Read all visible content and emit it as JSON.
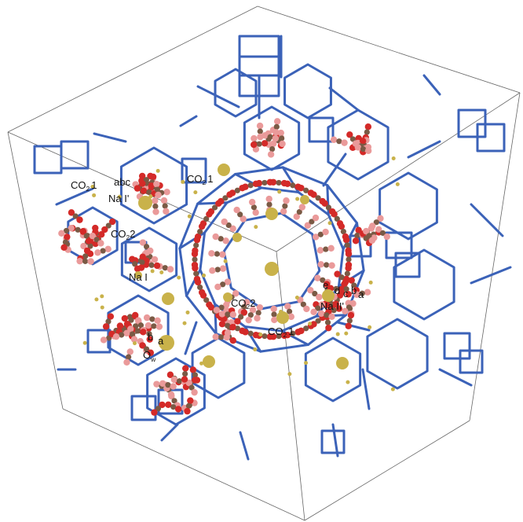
{
  "colors": {
    "framework": "#3b62b8",
    "oxygen": "#d42a28",
    "oxygen_faint": "#ea9a9a",
    "carbon": "#7a5a45",
    "sodium": "#c9b24a",
    "box": "#666666"
  },
  "labels": {
    "co2_1_left": {
      "main": "CO",
      "sub": "2",
      "tail": "1"
    },
    "co2_1_top": {
      "main": "CO",
      "sub": "2",
      "tail": "1"
    },
    "co2_2_left": {
      "main": "CO",
      "sub": "2",
      "tail": "2"
    },
    "co2_2_center": {
      "main": "CO",
      "sub": "2",
      "tail": "2"
    },
    "co2_1_bottom": {
      "main": "CO",
      "sub": "2",
      "tail": "1"
    },
    "na_i_prime": "Na I'",
    "na_i": "Na I",
    "na_ii_prime": "Na II'",
    "ow": {
      "main": "O",
      "sub": "w"
    },
    "letters_left": "abc",
    "letters_right": [
      "e",
      "d",
      "c",
      "b",
      "a"
    ],
    "letters_ow": [
      "b",
      "a"
    ]
  }
}
